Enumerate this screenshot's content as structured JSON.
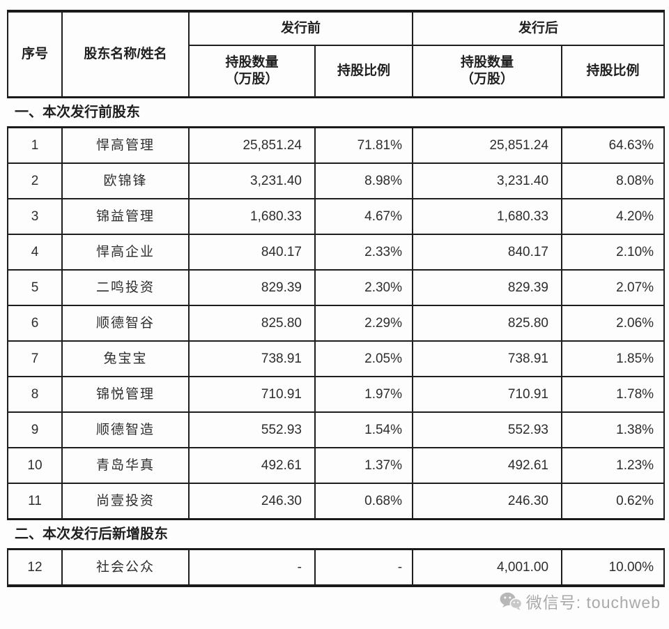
{
  "table": {
    "header": {
      "col_no": "序号",
      "col_name": "股东名称/姓名",
      "group_before": "发行前",
      "group_after": "发行后",
      "col_qty_line1": "持股数量",
      "col_qty_line2": "（万股）",
      "col_ratio": "持股比例"
    },
    "sections": [
      {
        "title": "一、本次发行前股东",
        "rows": [
          {
            "no": "1",
            "name": "悍高管理",
            "pre_qty": "25,851.24",
            "pre_ratio": "71.81%",
            "post_qty": "25,851.24",
            "post_ratio": "64.63%"
          },
          {
            "no": "2",
            "name": "欧锦锋",
            "pre_qty": "3,231.40",
            "pre_ratio": "8.98%",
            "post_qty": "3,231.40",
            "post_ratio": "8.08%"
          },
          {
            "no": "3",
            "name": "锦益管理",
            "pre_qty": "1,680.33",
            "pre_ratio": "4.67%",
            "post_qty": "1,680.33",
            "post_ratio": "4.20%"
          },
          {
            "no": "4",
            "name": "悍高企业",
            "pre_qty": "840.17",
            "pre_ratio": "2.33%",
            "post_qty": "840.17",
            "post_ratio": "2.10%"
          },
          {
            "no": "5",
            "name": "二鸣投资",
            "pre_qty": "829.39",
            "pre_ratio": "2.30%",
            "post_qty": "829.39",
            "post_ratio": "2.07%"
          },
          {
            "no": "6",
            "name": "顺德智谷",
            "pre_qty": "825.80",
            "pre_ratio": "2.29%",
            "post_qty": "825.80",
            "post_ratio": "2.06%"
          },
          {
            "no": "7",
            "name": "兔宝宝",
            "pre_qty": "738.91",
            "pre_ratio": "2.05%",
            "post_qty": "738.91",
            "post_ratio": "1.85%"
          },
          {
            "no": "8",
            "name": "锦悦管理",
            "pre_qty": "710.91",
            "pre_ratio": "1.97%",
            "post_qty": "710.91",
            "post_ratio": "1.78%"
          },
          {
            "no": "9",
            "name": "顺德智造",
            "pre_qty": "552.93",
            "pre_ratio": "1.54%",
            "post_qty": "552.93",
            "post_ratio": "1.38%"
          },
          {
            "no": "10",
            "name": "青岛华真",
            "pre_qty": "492.61",
            "pre_ratio": "1.37%",
            "post_qty": "492.61",
            "post_ratio": "1.23%"
          },
          {
            "no": "11",
            "name": "尚壹投资",
            "pre_qty": "246.30",
            "pre_ratio": "0.68%",
            "post_qty": "246.30",
            "post_ratio": "0.62%"
          }
        ]
      },
      {
        "title": "二、本次发行后新增股东",
        "rows": [
          {
            "no": "12",
            "name": "社会公众",
            "pre_qty": "-",
            "pre_ratio": "-",
            "post_qty": "4,001.00",
            "post_ratio": "10.00%"
          }
        ]
      }
    ]
  },
  "footer": {
    "wechat_label": "微信号: touchweb"
  },
  "colors": {
    "border": "#1a1a1a",
    "text": "#2d2d2d",
    "watermark": "#a9a9a9",
    "background": "#fdfdfd"
  }
}
